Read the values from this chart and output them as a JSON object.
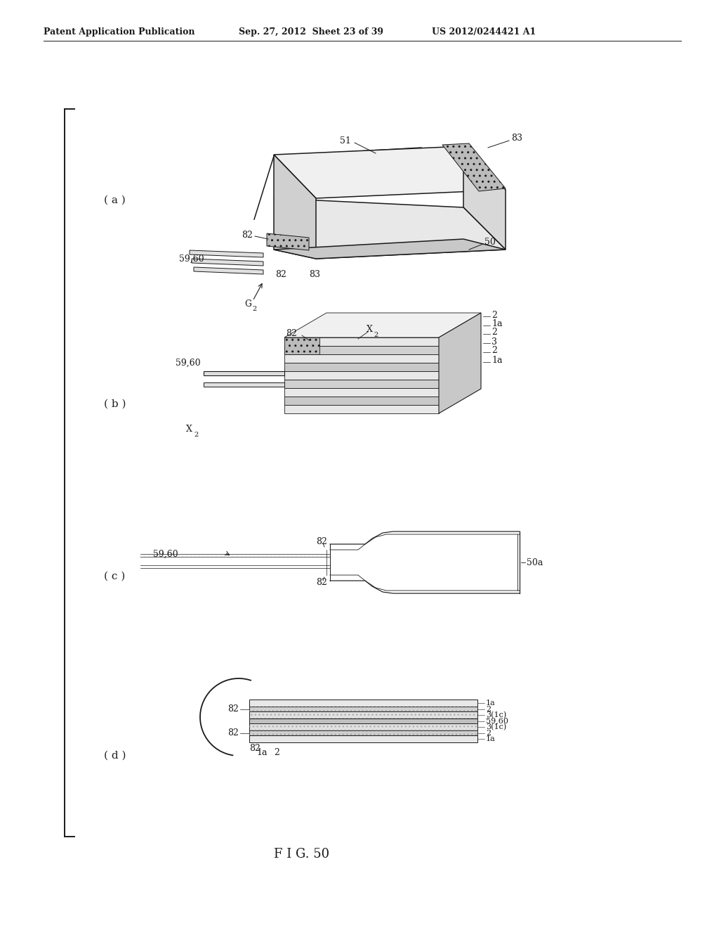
{
  "bg_color": "#ffffff",
  "header_left": "Patent Application Publication",
  "header_mid": "Sep. 27, 2012  Sheet 23 of 39",
  "header_right": "US 2012/0244421 A1",
  "figure_title": "F I G. 50",
  "line_color": "#1a1a1a",
  "lw_main": 1.1,
  "lw_thin": 0.6,
  "lw_med": 0.85
}
